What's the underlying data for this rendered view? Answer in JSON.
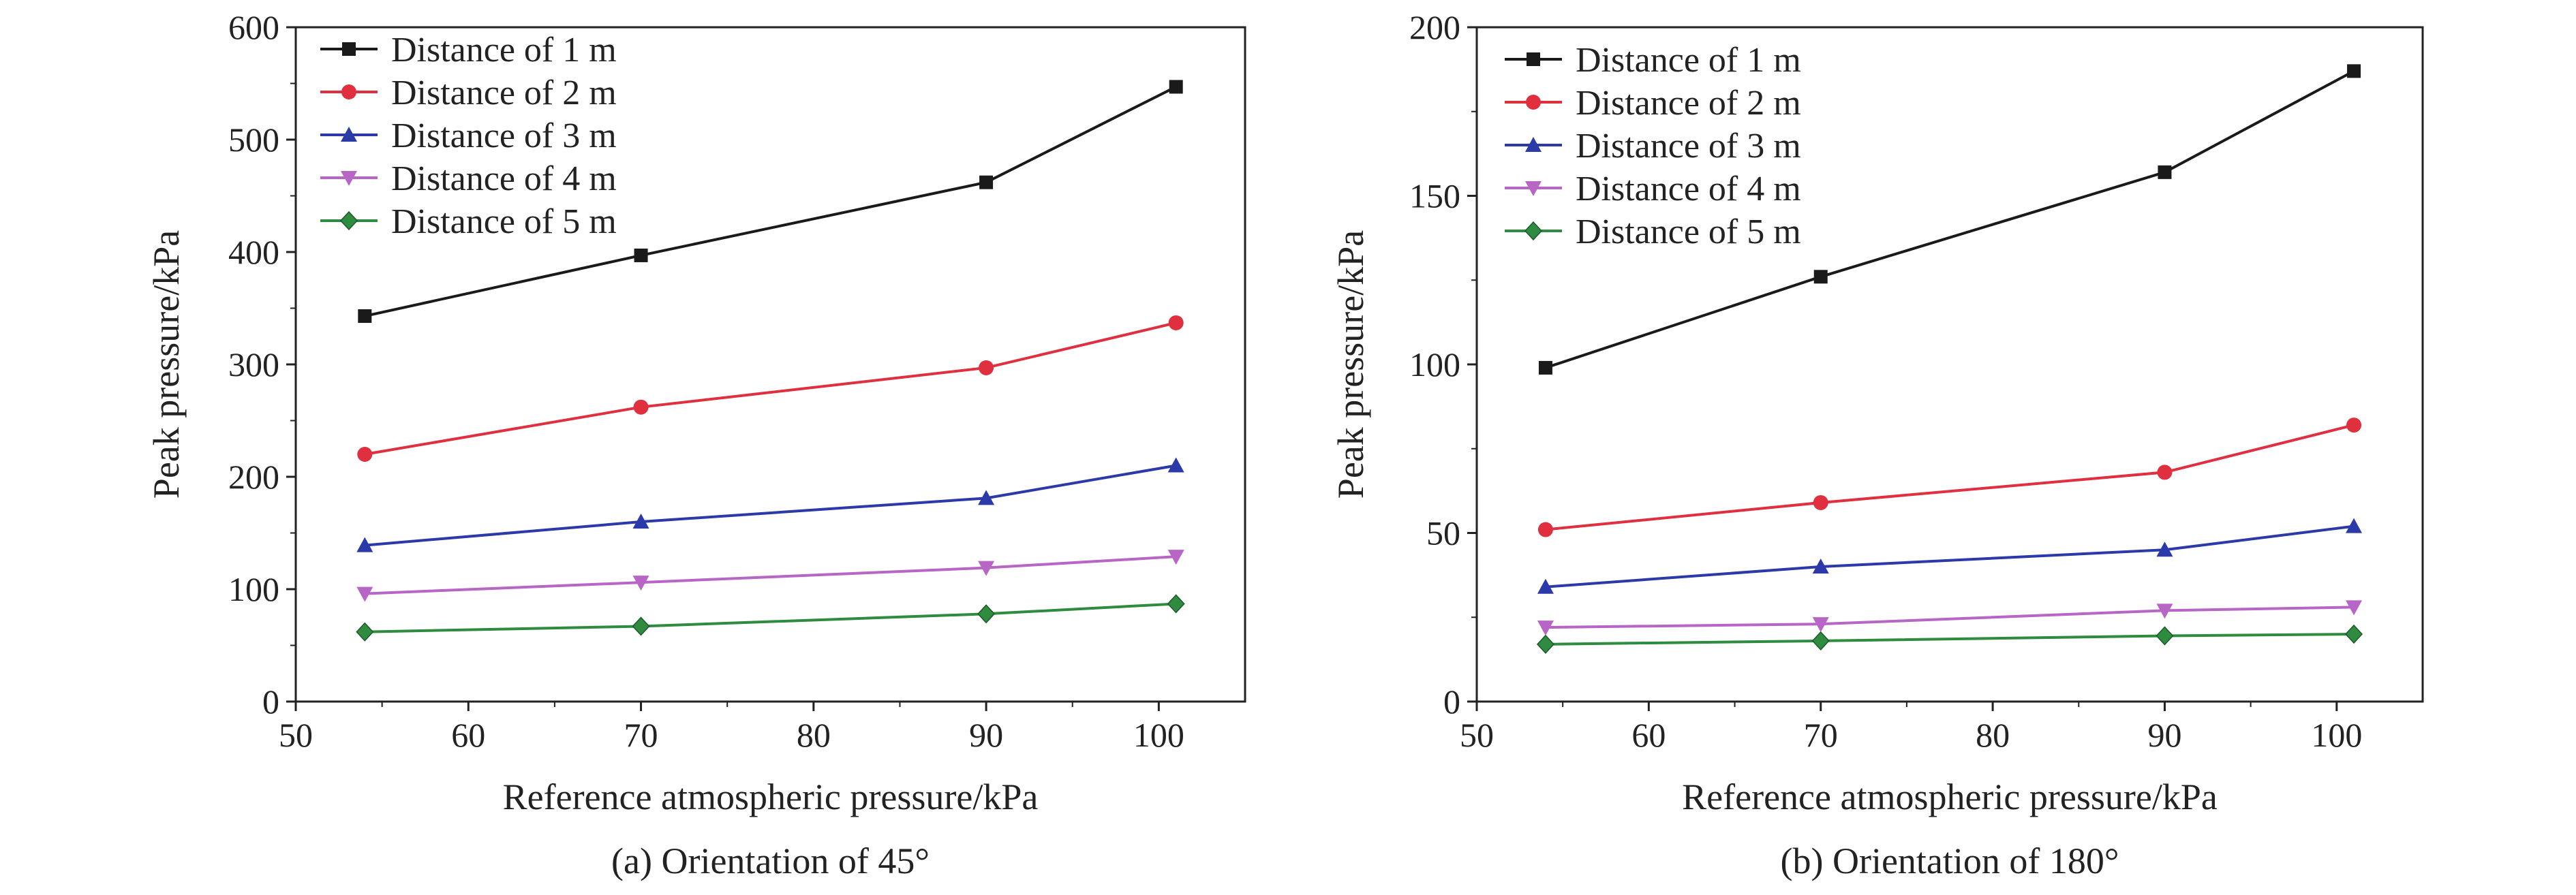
{
  "chart_data": [
    {
      "type": "line",
      "caption": "(a) Orientation of 45°",
      "xlabel": "Reference atmospheric pressure/kPa",
      "ylabel": "Peak pressure/kPa",
      "xlim": [
        50,
        105
      ],
      "ylim": [
        0,
        600
      ],
      "xticks": [
        50,
        60,
        70,
        80,
        90,
        100
      ],
      "yticks": [
        0,
        100,
        200,
        300,
        400,
        500,
        600
      ],
      "legend_position": "top-left",
      "grid": false,
      "x": [
        54,
        70,
        90,
        101
      ],
      "series": [
        {
          "name": "Distance of 1 m",
          "marker": "square",
          "color": "#1a1a1a",
          "values": [
            343,
            397,
            462,
            547
          ]
        },
        {
          "name": "Distance of 2 m",
          "marker": "circle",
          "color": "#e03040",
          "values": [
            220,
            262,
            297,
            337
          ]
        },
        {
          "name": "Distance of 3 m",
          "marker": "triangle-up",
          "color": "#2b3aa8",
          "values": [
            139,
            160,
            181,
            210
          ]
        },
        {
          "name": "Distance of 4 m",
          "marker": "triangle-down",
          "color": "#b766c6",
          "values": [
            96,
            106,
            119,
            129
          ]
        },
        {
          "name": "Distance of 5 m",
          "marker": "diamond",
          "color": "#2e8b3f",
          "values": [
            62,
            67,
            78,
            87
          ]
        }
      ]
    },
    {
      "type": "line",
      "caption": "(b) Orientation of 180°",
      "xlabel": "Reference atmospheric pressure/kPa",
      "ylabel": "Peak pressure/kPa",
      "xlim": [
        50,
        105
      ],
      "ylim": [
        0,
        200
      ],
      "xticks": [
        50,
        60,
        70,
        80,
        90,
        100
      ],
      "yticks": [
        0,
        50,
        100,
        150,
        200
      ],
      "legend_position": "top-left",
      "grid": false,
      "x": [
        54,
        70,
        90,
        101
      ],
      "series": [
        {
          "name": "Distance of 1 m",
          "marker": "square",
          "color": "#1a1a1a",
          "values": [
            99,
            126,
            157,
            187
          ]
        },
        {
          "name": "Distance of 2 m",
          "marker": "circle",
          "color": "#e03040",
          "values": [
            51,
            59,
            68,
            82
          ]
        },
        {
          "name": "Distance of 3 m",
          "marker": "triangle-up",
          "color": "#2b3aa8",
          "values": [
            34,
            40,
            45,
            52
          ]
        },
        {
          "name": "Distance of 4 m",
          "marker": "triangle-down",
          "color": "#b766c6",
          "values": [
            22,
            23,
            27,
            28
          ]
        },
        {
          "name": "Distance of 5 m",
          "marker": "diamond",
          "color": "#2e8b3f",
          "values": [
            17,
            18,
            19.5,
            20
          ]
        }
      ]
    }
  ]
}
